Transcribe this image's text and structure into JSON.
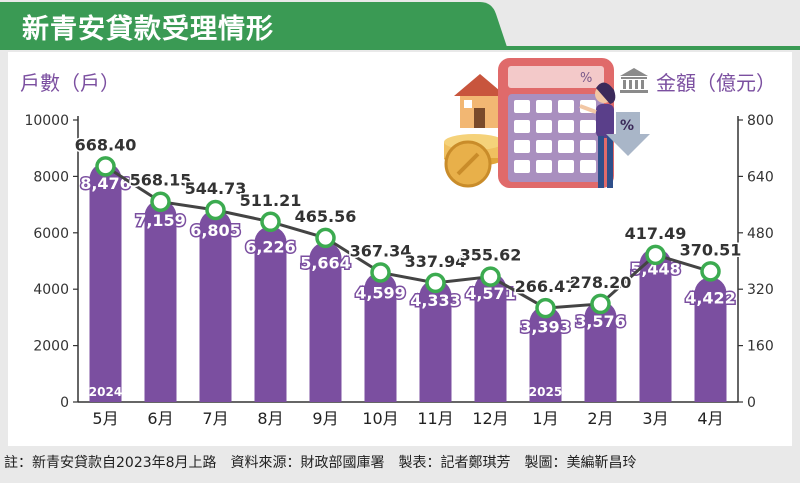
{
  "title": "新青安貸款受理情形",
  "footnote": "註：新青安貸款自2023年8月上路　資料來源：財政部國庫署　製表：記者鄭琪芳　製圖：美編靳昌玲",
  "colors": {
    "header_green": "#3a9a54",
    "bar_purple": "#7b4fa0",
    "line_dark": "#444444",
    "marker_green": "#3cab50",
    "axis_label_purple": "#7b4fa0"
  },
  "chart_data": {
    "type": "bar",
    "categories": [
      "5月",
      "6月",
      "7月",
      "8月",
      "9月",
      "10月",
      "11月",
      "12月",
      "1月",
      "2月",
      "3月",
      "4月"
    ],
    "year_markers": [
      {
        "category_index": 0,
        "label": "2024"
      },
      {
        "category_index": 8,
        "label": "2025"
      }
    ],
    "series": [
      {
        "name": "戶數（戶）",
        "kind": "bar",
        "axis": "left",
        "values": [
          8476,
          7159,
          6805,
          6226,
          5664,
          4599,
          4333,
          4571,
          3393,
          3576,
          5448,
          4422
        ],
        "labels": [
          "8,476",
          "7,159",
          "6,805",
          "6,226",
          "5,664",
          "4,599",
          "4,333",
          "4,571",
          "3,393",
          "3,576",
          "5,448",
          "4,422"
        ]
      },
      {
        "name": "金額（億元）",
        "kind": "line",
        "axis": "right",
        "values": [
          668.4,
          568.15,
          544.73,
          511.21,
          465.56,
          367.34,
          337.94,
          355.62,
          266.47,
          278.2,
          417.49,
          370.51
        ],
        "labels": [
          "668.40",
          "568.15",
          "544.73",
          "511.21",
          "465.56",
          "367.34",
          "337.94",
          "355.62",
          "266.47",
          "278.20",
          "417.49",
          "370.51"
        ]
      }
    ],
    "y_left": {
      "label": "戶數（戶）",
      "ylim": [
        0,
        10000
      ],
      "ticks": [
        0,
        2000,
        4000,
        6000,
        8000,
        10000
      ],
      "tick_labels": [
        "0",
        "2000",
        "4000",
        "6000",
        "8000",
        "10000"
      ]
    },
    "y_right": {
      "label": "金額（億元）",
      "ylim": [
        0,
        800
      ],
      "ticks": [
        0,
        160,
        320,
        480,
        640,
        800
      ],
      "tick_labels": [
        "0",
        "160",
        "320",
        "480",
        "640",
        "800"
      ]
    },
    "grid": false,
    "legend": "none"
  }
}
